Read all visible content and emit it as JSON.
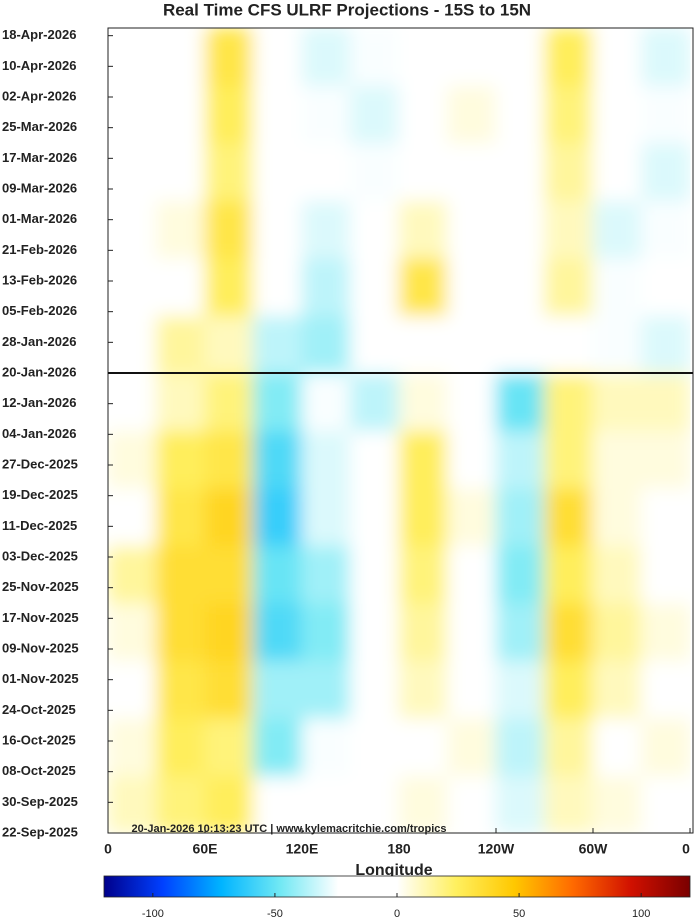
{
  "chart_data": {
    "type": "heatmap",
    "title": "Real Time CFS ULRF Projections - 15S to 15N",
    "xlabel": "Longitude",
    "annotation": "20-Jan-2026 10:13:23 UTC | www.kylemacritchie.com/tropics",
    "xlim": [
      0,
      360
    ],
    "xticks": [
      0,
      {
        "value": 60,
        "label": "60E"
      },
      {
        "value": 120,
        "label": "120E"
      },
      180,
      {
        "value": 240,
        "label": "120W"
      },
      {
        "value": 300,
        "label": "60W"
      },
      {
        "value": 360,
        "label": "0"
      }
    ],
    "ylim": [
      "2025-09-22",
      "2026-04-20"
    ],
    "yticks": [
      {
        "value": "2025-09-22",
        "label": "22-Sep-2025"
      },
      {
        "value": "2025-09-30",
        "label": "30-Sep-2025"
      },
      {
        "value": "2025-10-08",
        "label": "08-Oct-2025"
      },
      {
        "value": "2025-10-16",
        "label": "16-Oct-2025"
      },
      {
        "value": "2025-10-24",
        "label": "24-Oct-2025"
      },
      {
        "value": "2025-11-01",
        "label": "01-Nov-2025"
      },
      {
        "value": "2025-11-09",
        "label": "09-Nov-2025"
      },
      {
        "value": "2025-11-17",
        "label": "17-Nov-2025"
      },
      {
        "value": "2025-11-25",
        "label": "25-Nov-2025"
      },
      {
        "value": "2025-12-03",
        "label": "03-Dec-2025"
      },
      {
        "value": "2025-12-11",
        "label": "11-Dec-2025"
      },
      {
        "value": "2025-12-19",
        "label": "19-Dec-2025"
      },
      {
        "value": "2025-12-27",
        "label": "27-Dec-2025"
      },
      {
        "value": "2026-01-04",
        "label": "04-Jan-2026"
      },
      {
        "value": "2026-01-12",
        "label": "12-Jan-2026"
      },
      {
        "value": "2026-01-20",
        "label": "20-Jan-2026"
      },
      {
        "value": "2026-01-28",
        "label": "28-Jan-2026"
      },
      {
        "value": "2026-02-05",
        "label": "05-Feb-2026"
      },
      {
        "value": "2026-02-13",
        "label": "13-Feb-2026"
      },
      {
        "value": "2026-02-21",
        "label": "21-Feb-2026"
      },
      {
        "value": "2026-03-01",
        "label": "01-Mar-2026"
      },
      {
        "value": "2026-03-09",
        "label": "09-Mar-2026"
      },
      {
        "value": "2026-03-17",
        "label": "17-Mar-2026"
      },
      {
        "value": "2026-03-25",
        "label": "25-Mar-2026"
      },
      {
        "value": "2026-04-02",
        "label": "02-Apr-2026"
      },
      {
        "value": "2026-04-10",
        "label": "10-Apr-2026"
      },
      {
        "value": "2026-04-18",
        "label": "18-Apr-2026"
      }
    ],
    "hline": "2026-01-20",
    "xbins": [
      0,
      30,
      60,
      90,
      120,
      150,
      180,
      210,
      240,
      270,
      300,
      330,
      360
    ],
    "ybins": [
      "2025-09-22",
      "2025-10-07",
      "2025-10-22",
      "2025-11-06",
      "2025-11-21",
      "2025-12-06",
      "2025-12-21",
      "2026-01-05",
      "2026-01-20",
      "2026-02-04",
      "2026-02-19",
      "2026-03-06",
      "2026-03-21",
      "2026-04-05",
      "2026-04-20"
    ],
    "values": [
      [
        10,
        20,
        25,
        -20,
        -10,
        -10,
        5,
        -5,
        -30,
        10,
        5,
        -5
      ],
      [
        5,
        25,
        20,
        -45,
        -25,
        -20,
        0,
        5,
        -35,
        15,
        0,
        5
      ],
      [
        -10,
        30,
        35,
        -40,
        -40,
        -15,
        10,
        -5,
        -30,
        25,
        10,
        0
      ],
      [
        5,
        35,
        40,
        -55,
        -45,
        -10,
        15,
        0,
        -40,
        35,
        15,
        5
      ],
      [
        15,
        35,
        35,
        -50,
        -40,
        -15,
        20,
        0,
        -45,
        25,
        10,
        0
      ],
      [
        -10,
        30,
        40,
        -60,
        -30,
        -5,
        25,
        5,
        -40,
        35,
        5,
        0
      ],
      [
        5,
        25,
        30,
        -55,
        -30,
        -10,
        25,
        0,
        -35,
        20,
        5,
        5
      ],
      [
        0,
        10,
        20,
        -45,
        -25,
        -35,
        5,
        -5,
        -50,
        20,
        10,
        10
      ],
      [
        0,
        15,
        10,
        -35,
        -40,
        -20,
        -20,
        -10,
        -5,
        0,
        -25,
        -30
      ],
      [
        -15,
        0,
        25,
        0,
        -35,
        -15,
        30,
        0,
        -5,
        15,
        -25,
        -20
      ],
      [
        -20,
        5,
        30,
        -15,
        -30,
        -10,
        10,
        -5,
        0,
        10,
        -30,
        -25
      ],
      [
        -15,
        0,
        20,
        -5,
        -20,
        -25,
        0,
        0,
        -5,
        15,
        -20,
        -30
      ],
      [
        -10,
        0,
        25,
        0,
        -25,
        -30,
        0,
        5,
        0,
        20,
        -15,
        -25
      ],
      [
        -15,
        -5,
        30,
        0,
        -30,
        -25,
        0,
        0,
        0,
        25,
        -10,
        -30
      ]
    ],
    "clim": [
      -120,
      120
    ],
    "cticks": [
      -100,
      -50,
      0,
      50,
      100
    ],
    "colorscale": [
      "#00008b",
      "#0040ff",
      "#00b4ff",
      "#70e8f4",
      "#ffffff",
      "#ffffff",
      "#fff060",
      "#ffc800",
      "#ff6a00",
      "#d01000",
      "#7a0000"
    ]
  }
}
